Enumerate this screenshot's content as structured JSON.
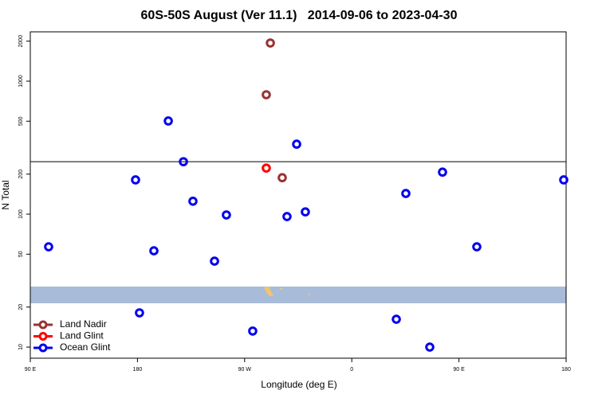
{
  "chart_data": {
    "type": "scatter",
    "title": "60S-50S August (Ver 11.1)   2014-09-06 to 2023-04-30",
    "x_label": "Longitude (deg E)",
    "y_label": "N Total",
    "xlim": [
      90,
      540
    ],
    "xticks": [
      {
        "value": 90,
        "label": "90 E"
      },
      {
        "value": 180,
        "label": "180"
      },
      {
        "value": 270,
        "label": "90 W"
      },
      {
        "value": 360,
        "label": "0"
      },
      {
        "value": 450,
        "label": "90 E"
      },
      {
        "value": 540,
        "label": "180"
      }
    ],
    "ylim": [
      8.25,
      2350
    ],
    "log_y": true,
    "yticks": [
      10,
      20,
      50,
      100,
      200,
      500,
      1000,
      2000
    ],
    "reference_line": 248,
    "legend": "bottom-left",
    "series": [
      {
        "name": "Land Nadir",
        "color": "#993333",
        "x": [
          291.6,
          288.2,
          301.6
        ],
        "values": [
          1937,
          791,
          188
        ]
      },
      {
        "name": "Land Glint",
        "color": "#ff0000",
        "x": [
          288.2
        ],
        "values": [
          222
        ]
      },
      {
        "name": "Ocean Glint",
        "color": "#0000ee",
        "x": [
          105.4,
          178.4,
          193.8,
          181.7,
          205.9,
          218.6,
          226.6,
          244.7,
          254.7,
          276.8,
          305.6,
          313.7,
          321.0,
          397.4,
          405.4,
          425.5,
          436.2,
          465.0,
          538.0
        ],
        "values": [
          56.8,
          181,
          53,
          18.1,
          502,
          248,
          125,
          44.3,
          98.6,
          13.2,
          95.9,
          336,
          104,
          16.2,
          143,
          10,
          207,
          56.8,
          181
        ]
      }
    ]
  }
}
